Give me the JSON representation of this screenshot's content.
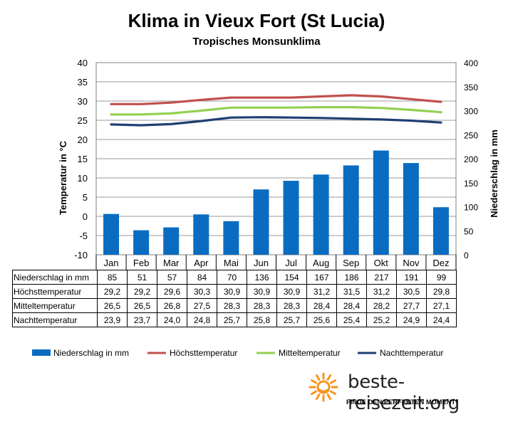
{
  "title": "Klima in Vieux Fort (St Lucia)",
  "subtitle": "Tropisches Monsunklima",
  "left_axis_label": "Temperatur in °C",
  "right_axis_label": "Niederschlag in mm",
  "chart_data": {
    "type": "bar+line",
    "categories": [
      "Jan",
      "Feb",
      "Mar",
      "Apr",
      "Mai",
      "Jun",
      "Jul",
      "Aug",
      "Sep",
      "Okt",
      "Nov",
      "Dez"
    ],
    "left_axis": {
      "min": -10,
      "max": 40,
      "step": 5,
      "ticks": [
        "-10",
        "-5",
        "0",
        "5",
        "10",
        "15",
        "20",
        "25",
        "30",
        "35",
        "40"
      ]
    },
    "right_axis": {
      "min": 0,
      "max": 400,
      "step": 50,
      "ticks": [
        "0",
        "50",
        "100",
        "150",
        "200",
        "250",
        "300",
        "350",
        "400"
      ]
    },
    "grid": true,
    "legend_position": "bottom",
    "series": [
      {
        "name": "Niederschlag in mm",
        "type": "bar",
        "axis": "right",
        "color": "#0a6cc0",
        "values": [
          85,
          51,
          57,
          84,
          70,
          136,
          154,
          167,
          186,
          217,
          191,
          99
        ],
        "labels": [
          "85",
          "51",
          "57",
          "84",
          "70",
          "136",
          "154",
          "167",
          "186",
          "217",
          "191",
          "99"
        ]
      },
      {
        "name": "Höchsttemperatur",
        "type": "line",
        "axis": "left",
        "color": "#c0504d",
        "values": [
          29.2,
          29.2,
          29.6,
          30.3,
          30.9,
          30.9,
          30.9,
          31.2,
          31.5,
          31.2,
          30.5,
          29.8
        ],
        "labels": [
          "29,2",
          "29,2",
          "29,6",
          "30,3",
          "30,9",
          "30,9",
          "30,9",
          "31,2",
          "31,5",
          "31,2",
          "30,5",
          "29,8"
        ]
      },
      {
        "name": "Mitteltemperatur",
        "type": "line",
        "axis": "left",
        "color": "#92d050",
        "values": [
          26.5,
          26.5,
          26.8,
          27.5,
          28.3,
          28.3,
          28.3,
          28.4,
          28.4,
          28.2,
          27.7,
          27.1
        ],
        "labels": [
          "26,5",
          "26,5",
          "26,8",
          "27,5",
          "28,3",
          "28,3",
          "28,3",
          "28,4",
          "28,4",
          "28,2",
          "27,7",
          "27,1"
        ]
      },
      {
        "name": "Nachttemperatur",
        "type": "line",
        "axis": "left",
        "color": "#1f3f72",
        "values": [
          23.9,
          23.7,
          24.0,
          24.8,
          25.7,
          25.8,
          25.7,
          25.6,
          25.4,
          25.2,
          24.9,
          24.4
        ],
        "labels": [
          "23,9",
          "23,7",
          "24,0",
          "24,8",
          "25,7",
          "25,8",
          "25,7",
          "25,6",
          "25,4",
          "25,2",
          "24,9",
          "24,4"
        ]
      }
    ]
  },
  "logo": {
    "name": "beste-reisezeit.org",
    "tagline": "FINDE DEN PERFEKTEN MOMENT!",
    "sun_color": "#f7941d"
  }
}
